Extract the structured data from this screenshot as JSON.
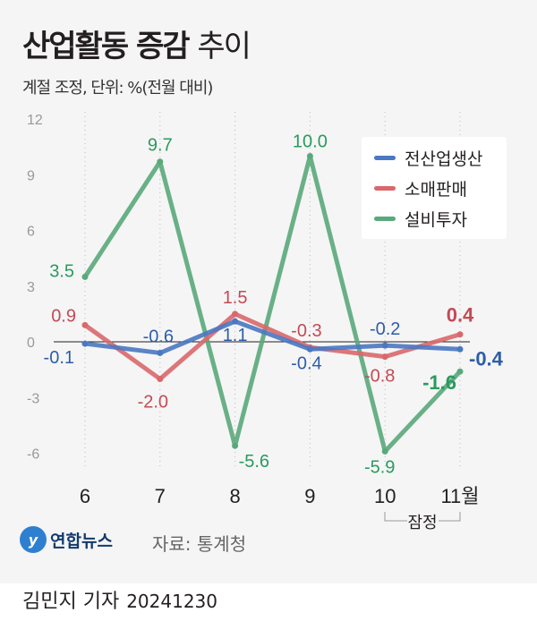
{
  "title": {
    "bold": "산업활동 증감",
    "light": "추이"
  },
  "subtitle": "계절 조정, 단위: %(전월 대비)",
  "source": "자료: 통계청",
  "logo": "연합뉴스",
  "footer": {
    "author": "김민지 기자",
    "date": "20241230"
  },
  "chart_data": {
    "type": "line",
    "categories": [
      "6",
      "7",
      "8",
      "9",
      "10",
      "11월"
    ],
    "ylim": [
      -6,
      12
    ],
    "yticks": [
      "12",
      "9",
      "6",
      "3",
      "0",
      "-3",
      "-6"
    ],
    "grid": "vertical dotted",
    "legend": "top-right",
    "annotation": "잠정",
    "series": [
      {
        "name": "전산업생산",
        "color": "#4a78c2",
        "values": [
          -0.1,
          -0.6,
          1.1,
          -0.4,
          -0.2,
          -0.4
        ],
        "labels": [
          "-0.1",
          "-0.6",
          "1.1",
          "-0.4",
          "-0.2",
          "-0.4"
        ]
      },
      {
        "name": "소매판매",
        "color": "#d9686c",
        "values": [
          0.9,
          -2.0,
          1.5,
          -0.3,
          -0.8,
          0.4
        ],
        "labels": [
          "0.9",
          "-2.0",
          "1.5",
          "-0.3",
          "-0.8",
          "0.4"
        ]
      },
      {
        "name": "설비투자",
        "color": "#5aa97b",
        "values": [
          3.5,
          9.7,
          -5.6,
          10.0,
          -5.9,
          -1.6
        ],
        "labels": [
          "3.5",
          "9.7",
          "-5.6",
          "10.0",
          "-5.9",
          "-1.6"
        ]
      }
    ]
  }
}
